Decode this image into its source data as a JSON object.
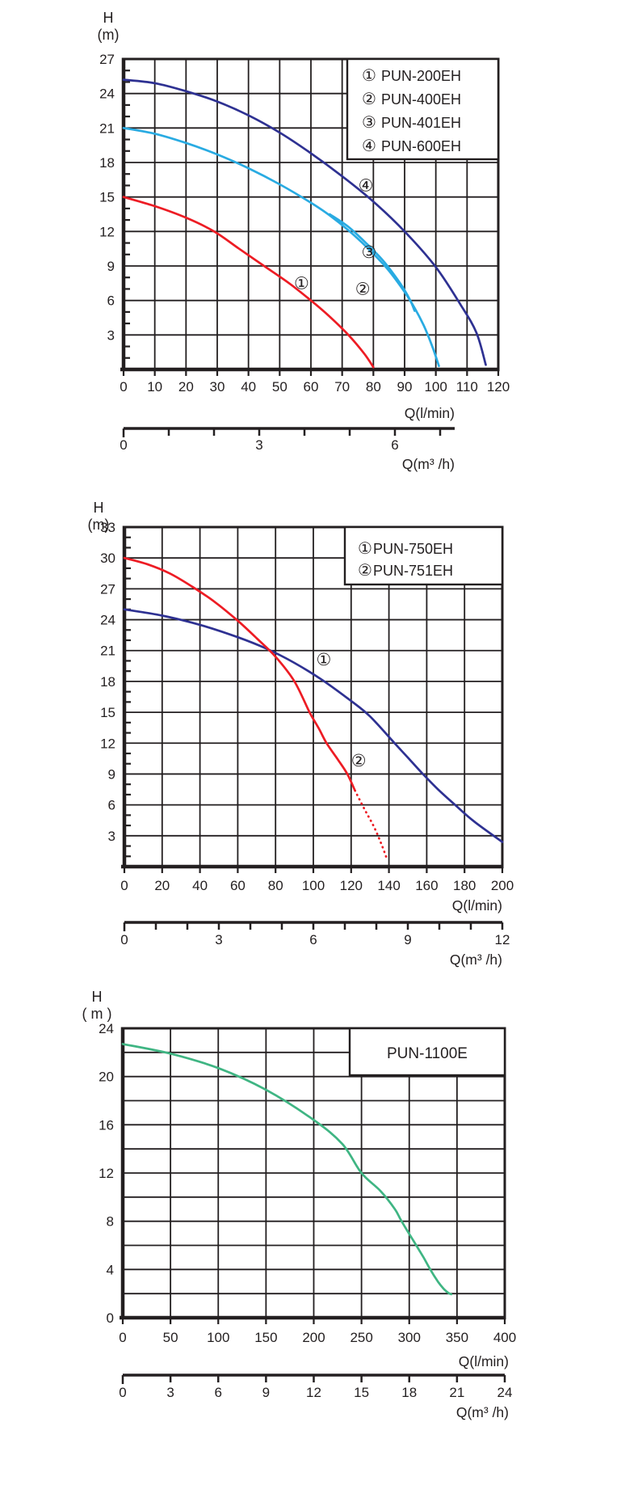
{
  "page": {
    "background": "#ffffff",
    "ink": "#231f20"
  },
  "chart_data": [
    {
      "type": "line",
      "title": "",
      "y_axis": {
        "label": "H",
        "unit": "(m)",
        "min": 0,
        "max": 27,
        "grid_step": 3,
        "minor_step": 1,
        "tick_labels": [
          3,
          6,
          9,
          12,
          15,
          18,
          21,
          24,
          27
        ]
      },
      "x_axis": {
        "label": "Q(l/min)",
        "min": 0,
        "max": 120,
        "tick_step": 10,
        "grid_step": 10
      },
      "x2_axis": {
        "label": "Q(m³ /h)",
        "tick_labels": [
          0,
          3,
          6
        ],
        "minor_step": 1,
        "ticks_to": 7
      },
      "legend": [
        {
          "marker": "①",
          "text": "PUN-200EH"
        },
        {
          "marker": "②",
          "text": "PUN-400EH"
        },
        {
          "marker": "③",
          "text": "PUN-401EH"
        },
        {
          "marker": "④",
          "text": "PUN-600EH"
        }
      ],
      "series": [
        {
          "name": "PUN-200EH",
          "marker": "①",
          "color": "#ed1c24",
          "points": [
            [
              0,
              15
            ],
            [
              10,
              14.2
            ],
            [
              20,
              13.2
            ],
            [
              29,
              12
            ],
            [
              37,
              10.5
            ],
            [
              45,
              9
            ],
            [
              53,
              7.5
            ],
            [
              60,
              6
            ],
            [
              66,
              4.6
            ],
            [
              72,
              3
            ],
            [
              77,
              1.4
            ],
            [
              80,
              0.2
            ]
          ],
          "marker_at": [
            57,
            7.5
          ]
        },
        {
          "name": "PUN-400EH",
          "marker": "②",
          "color": "#29abe2",
          "points": [
            [
              0,
              21
            ],
            [
              10,
              20.5
            ],
            [
              20,
              19.7
            ],
            [
              30,
              18.7
            ],
            [
              40,
              17.5
            ],
            [
              50,
              16.1
            ],
            [
              60,
              14.5
            ],
            [
              66,
              13.4
            ],
            [
              72,
              12.1
            ],
            [
              78,
              10.6
            ],
            [
              84,
              8.9
            ],
            [
              88,
              7.5
            ],
            [
              92,
              5.9
            ],
            [
              96,
              3.9
            ],
            [
              99,
              1.9
            ],
            [
              101,
              0.3
            ]
          ],
          "marker_at": [
            76.6,
            7.0
          ]
        },
        {
          "name": "PUN-401EH",
          "marker": "③",
          "color": "#29abe2",
          "points": [
            [
              66,
              13.5
            ],
            [
              72,
              12.4
            ],
            [
              78,
              10.9
            ],
            [
              83,
              9.5
            ],
            [
              87,
              8.1
            ],
            [
              90,
              6.9
            ],
            [
              92,
              5.9
            ],
            [
              93.2,
              5.1
            ]
          ],
          "marker_at": [
            78.6,
            10.2
          ]
        },
        {
          "name": "PUN-600EH",
          "marker": "④",
          "color": "#2e3192",
          "points": [
            [
              0,
              25.2
            ],
            [
              10,
              24.9
            ],
            [
              20,
              24.2
            ],
            [
              30,
              23.3
            ],
            [
              40,
              22.1
            ],
            [
              50,
              20.6
            ],
            [
              60,
              18.8
            ],
            [
              70,
              16.8
            ],
            [
              80,
              14.6
            ],
            [
              90,
              12
            ],
            [
              100,
              8.9
            ],
            [
              108,
              5.6
            ],
            [
              113,
              3.2
            ],
            [
              116,
              0.4
            ]
          ],
          "marker_at": [
            77.6,
            16.0
          ]
        }
      ]
    },
    {
      "type": "line",
      "title": "",
      "y_axis": {
        "label": "H",
        "unit": "(m)",
        "min": 0,
        "max": 33,
        "grid_step": 3,
        "minor_step": 1,
        "tick_labels": [
          3,
          6,
          9,
          12,
          15,
          18,
          21,
          24,
          27,
          30,
          33
        ]
      },
      "x_axis": {
        "label": "Q(l/min)",
        "min": 0,
        "max": 200,
        "tick_step": 20,
        "grid_step": 20
      },
      "x2_axis": {
        "label": "Q(m³ /h)",
        "tick_labels": [
          0,
          3,
          6,
          9,
          12
        ],
        "minor_step": 1,
        "ticks_to": 12
      },
      "legend": [
        {
          "marker": "①",
          "text": "PUN-750EH"
        },
        {
          "marker": "②",
          "text": "PUN-751EH"
        }
      ],
      "series": [
        {
          "name": "PUN-750EH",
          "marker": "①",
          "color": "#2e3192",
          "points": [
            [
              0,
              25
            ],
            [
              20,
              24.4
            ],
            [
              40,
              23.5
            ],
            [
              60,
              22.3
            ],
            [
              75,
              21.2
            ],
            [
              90,
              19.8
            ],
            [
              105,
              18.1
            ],
            [
              120,
              16.1
            ],
            [
              130,
              14.6
            ],
            [
              143,
              12
            ],
            [
              150,
              10.6
            ],
            [
              158,
              9
            ],
            [
              166,
              7.5
            ],
            [
              175,
              6
            ],
            [
              185,
              4.4
            ],
            [
              200,
              2.4
            ]
          ],
          "marker_at": [
            105.5,
            20.1
          ]
        },
        {
          "name": "PUN-751EH",
          "marker": "②",
          "color": "#ed1c24",
          "points": [
            [
              0,
              30
            ],
            [
              12,
              29.4
            ],
            [
              24,
              28.5
            ],
            [
              36,
              27.2
            ],
            [
              48,
              25.7
            ],
            [
              60,
              23.9
            ],
            [
              70,
              22.2
            ],
            [
              80,
              20.4
            ],
            [
              90,
              18
            ],
            [
              98,
              15
            ],
            [
              103,
              13.4
            ],
            [
              107,
              12
            ],
            [
              113,
              10.4
            ],
            [
              118,
              9
            ],
            [
              122,
              7.4
            ]
          ],
          "dotted_points": [
            [
              122,
              7.4
            ],
            [
              127,
              5.6
            ],
            [
              132,
              3.9
            ],
            [
              136,
              2.2
            ],
            [
              139,
              0.7
            ]
          ],
          "marker_at": [
            124,
            10.3
          ]
        }
      ]
    },
    {
      "type": "line",
      "title": "",
      "y_axis": {
        "label": "H",
        "unit": "( m )",
        "min": 0,
        "max": 24,
        "grid_step": 2,
        "minor_step": 0,
        "tick_labels": [
          0,
          4,
          8,
          12,
          16,
          20,
          24
        ]
      },
      "x_axis": {
        "label": "Q(l/min)",
        "min": 0,
        "max": 400,
        "tick_step": 50,
        "grid_step": 50
      },
      "x2_axis": {
        "label": "Q(m³ /h)",
        "tick_labels": [
          0,
          3,
          6,
          9,
          12,
          15,
          18,
          21,
          24
        ],
        "minor_step": 3,
        "ticks_to": 24
      },
      "legend": [
        {
          "marker": "",
          "text": "PUN-1100E"
        }
      ],
      "series": [
        {
          "name": "PUN-1100E",
          "marker": "",
          "color": "#3fb583",
          "points": [
            [
              0,
              22.7
            ],
            [
              50,
              21.9
            ],
            [
              100,
              20.7
            ],
            [
              150,
              18.9
            ],
            [
              200,
              16.4
            ],
            [
              230,
              14.4
            ],
            [
              250,
              12
            ],
            [
              270,
              10.5
            ],
            [
              285,
              9
            ],
            [
              292,
              8
            ],
            [
              305,
              6.3
            ],
            [
              315,
              5
            ],
            [
              322,
              4
            ],
            [
              330,
              3
            ],
            [
              336,
              2.4
            ],
            [
              341,
              2.05
            ],
            [
              344,
              1.95
            ]
          ],
          "marker_at": null
        }
      ]
    }
  ]
}
